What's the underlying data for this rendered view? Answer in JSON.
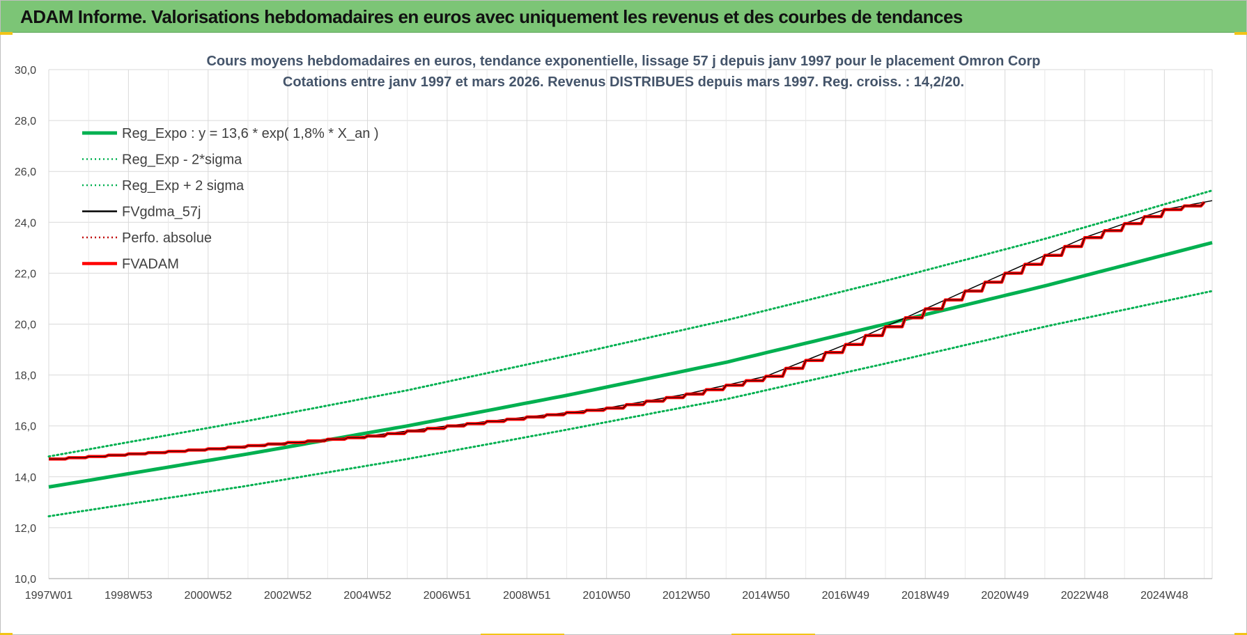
{
  "header": {
    "title": "ADAM Informe. Valorisations hebdomadaires en euros avec uniquement les revenus et des courbes de tendances"
  },
  "colors": {
    "header_bg": "#7cc576",
    "green": "#00b050",
    "red": "#ff0000",
    "black": "#000000",
    "grid": "#d9d9d9"
  },
  "chart_data": {
    "type": "line",
    "title": "Cours moyens hebdomadaires en euros, tendance exponentielle, lissage 57 j depuis janv 1997  pour le placement Omron Corp",
    "subtitle": "Cotations entre janv 1997 et mars 2026. Revenus DISTRIBUES depuis mars 1997. Reg. croiss. : 14,2/20.",
    "x_range": [
      "1997W01",
      "2026W12"
    ],
    "x_tick_labels": [
      "1997W01",
      "1998W53",
      "2000W52",
      "2002W52",
      "2004W52",
      "2006W51",
      "2008W51",
      "2010W50",
      "2012W50",
      "2014W50",
      "2016W49",
      "2018W49",
      "2020W49",
      "2022W48",
      "2024W48"
    ],
    "y_tick_labels": [
      "10,0",
      "12,0",
      "14,0",
      "16,0",
      "18,0",
      "20,0",
      "22,0",
      "24,0",
      "26,0",
      "28,0",
      "30,0"
    ],
    "ylim": [
      10,
      30
    ],
    "grid": true,
    "legend_position": "top-left",
    "legend": [
      "Reg_Expo : y = 13,6 * exp( 1,8% *  X_an )",
      "Reg_Exp - 2*sigma",
      "Reg_Exp + 2 sigma",
      "FVgdma_57j",
      "Perfo. absolue",
      "FVADAM"
    ],
    "series": [
      {
        "name": "Reg_Expo : y = 13,6 * exp( 1,8% *  X_an )",
        "color": "#00b050",
        "style": "solid-thick",
        "x": [
          1997.0,
          2002.0,
          2006.0,
          2010.0,
          2014.0,
          2018.0,
          2022.0,
          2026.2
        ],
        "y": [
          13.6,
          14.9,
          16.0,
          17.2,
          18.5,
          20.0,
          21.5,
          23.2
        ]
      },
      {
        "name": "Reg_Exp - 2*sigma",
        "color": "#00b050",
        "style": "dotted",
        "x": [
          1997.0,
          2002.0,
          2006.0,
          2010.0,
          2014.0,
          2018.0,
          2022.0,
          2026.2
        ],
        "y": [
          12.45,
          13.65,
          14.7,
          15.85,
          17.05,
          18.45,
          19.9,
          21.3
        ]
      },
      {
        "name": "Reg_Exp + 2 sigma",
        "color": "#00b050",
        "style": "dotted",
        "x": [
          1997.0,
          2002.0,
          2006.0,
          2010.0,
          2014.0,
          2018.0,
          2022.0,
          2026.2
        ],
        "y": [
          14.8,
          16.2,
          17.4,
          18.75,
          20.15,
          21.7,
          23.35,
          25.25
        ]
      },
      {
        "name": "FVgdma_57j",
        "color": "#000000",
        "style": "solid-thin",
        "x": [
          1997.0,
          1999.0,
          2001.0,
          2003.0,
          2005.0,
          2007.0,
          2009.0,
          2011.0,
          2013.0,
          2015.0,
          2017.0,
          2019.0,
          2021.0,
          2023.0,
          2025.0,
          2026.2
        ],
        "y": [
          14.7,
          14.9,
          15.1,
          15.35,
          15.6,
          16.0,
          16.35,
          16.7,
          17.25,
          17.95,
          19.2,
          20.6,
          22.0,
          23.4,
          24.5,
          24.85
        ]
      },
      {
        "name": "Perfo. absolue",
        "color": "#c00000",
        "style": "dotted",
        "x": [],
        "y": []
      },
      {
        "name": "FVADAM",
        "color": "#ff0000",
        "style": "step-thick",
        "x": [
          1997.0,
          1999.0,
          2001.0,
          2003.0,
          2005.0,
          2007.0,
          2009.0,
          2011.0,
          2013.0,
          2015.0,
          2017.0,
          2019.0,
          2021.0,
          2023.0,
          2025.0,
          2026.2
        ],
        "y": [
          14.7,
          14.9,
          15.1,
          15.35,
          15.6,
          16.0,
          16.35,
          16.7,
          17.25,
          17.95,
          19.2,
          20.6,
          22.0,
          23.4,
          24.5,
          24.85
        ]
      }
    ]
  }
}
